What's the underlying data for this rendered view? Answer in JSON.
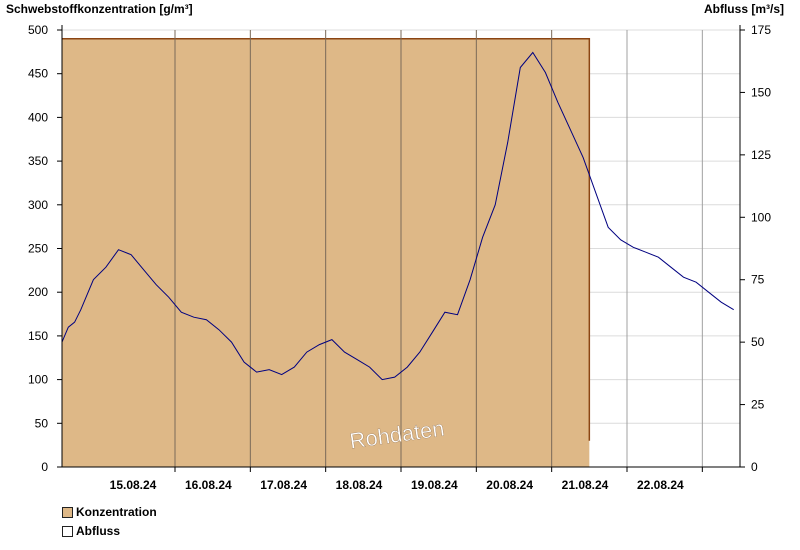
{
  "chart_data": {
    "type": "area",
    "ylabel_left": "Schwebstoffkonzentration [g/m³]",
    "ylabel_right": "Abfluss [m³/s]",
    "y_left_ticks": [
      "0",
      "50",
      "100",
      "150",
      "200",
      "250",
      "300",
      "350",
      "400",
      "450",
      "500"
    ],
    "y_right_ticks": [
      "0",
      "25",
      "50",
      "75",
      "100",
      "125",
      "150",
      "175"
    ],
    "ylim_left": [
      0,
      500
    ],
    "ylim_right": [
      0,
      175
    ],
    "x_dates": [
      "15.08.24",
      "16.08.24",
      "17.08.24",
      "18.08.24",
      "19.08.24",
      "20.08.24",
      "21.08.24",
      "22.08.24"
    ],
    "xlim": [
      "2024-08-14",
      "2024-08-23"
    ],
    "watermark": "Rohdaten",
    "grid": true,
    "legend_position": "bottom-left",
    "series": [
      {
        "name": "Konzentration",
        "axis": "left",
        "color": "#deb887",
        "line_color": "#8b4513",
        "x": [
          "2024-08-14",
          "2024-08-21"
        ],
        "values": [
          490,
          490
        ],
        "end_drop_value": 30
      },
      {
        "name": "Abfluss",
        "axis": "right",
        "color": "#000080",
        "x": [
          "2024-08-14 00:00",
          "2024-08-14 02:00",
          "2024-08-14 04:00",
          "2024-08-14 06:00",
          "2024-08-14 10:00",
          "2024-08-14 14:00",
          "2024-08-14 18:00",
          "2024-08-14 22:00",
          "2024-08-15 02:00",
          "2024-08-15 06:00",
          "2024-08-15 10:00",
          "2024-08-15 14:00",
          "2024-08-15 18:00",
          "2024-08-15 22:00",
          "2024-08-16 02:00",
          "2024-08-16 06:00",
          "2024-08-16 10:00",
          "2024-08-16 14:00",
          "2024-08-16 18:00",
          "2024-08-16 22:00",
          "2024-08-17 02:00",
          "2024-08-17 06:00",
          "2024-08-17 10:00",
          "2024-08-17 14:00",
          "2024-08-17 18:00",
          "2024-08-17 22:00",
          "2024-08-18 02:00",
          "2024-08-18 06:00",
          "2024-08-18 10:00",
          "2024-08-18 14:00",
          "2024-08-18 18:00",
          "2024-08-18 22:00",
          "2024-08-19 02:00",
          "2024-08-19 06:00",
          "2024-08-19 10:00",
          "2024-08-19 14:00",
          "2024-08-19 18:00",
          "2024-08-19 22:00",
          "2024-08-20 02:00",
          "2024-08-20 06:00",
          "2024-08-20 10:00",
          "2024-08-20 14:00",
          "2024-08-20 18:00",
          "2024-08-20 22:00",
          "2024-08-21 02:00",
          "2024-08-21 06:00",
          "2024-08-21 10:00",
          "2024-08-21 14:00",
          "2024-08-21 18:00",
          "2024-08-21 22:00",
          "2024-08-22 02:00",
          "2024-08-22 06:00",
          "2024-08-22 10:00",
          "2024-08-22 14:00",
          "2024-08-22 18:00",
          "2024-08-22 22:00"
        ],
        "values": [
          50,
          56,
          58,
          63,
          75,
          80,
          87,
          85,
          79,
          73,
          68,
          62,
          60,
          59,
          55,
          50,
          42,
          38,
          39,
          37,
          40,
          46,
          49,
          51,
          46,
          43,
          40,
          35,
          36,
          40,
          46,
          54,
          62,
          61,
          75,
          92,
          105,
          130,
          160,
          166,
          158,
          146,
          135,
          124,
          110,
          96,
          91,
          88,
          86,
          84,
          80,
          76,
          74,
          70,
          66,
          63
        ]
      }
    ]
  }
}
